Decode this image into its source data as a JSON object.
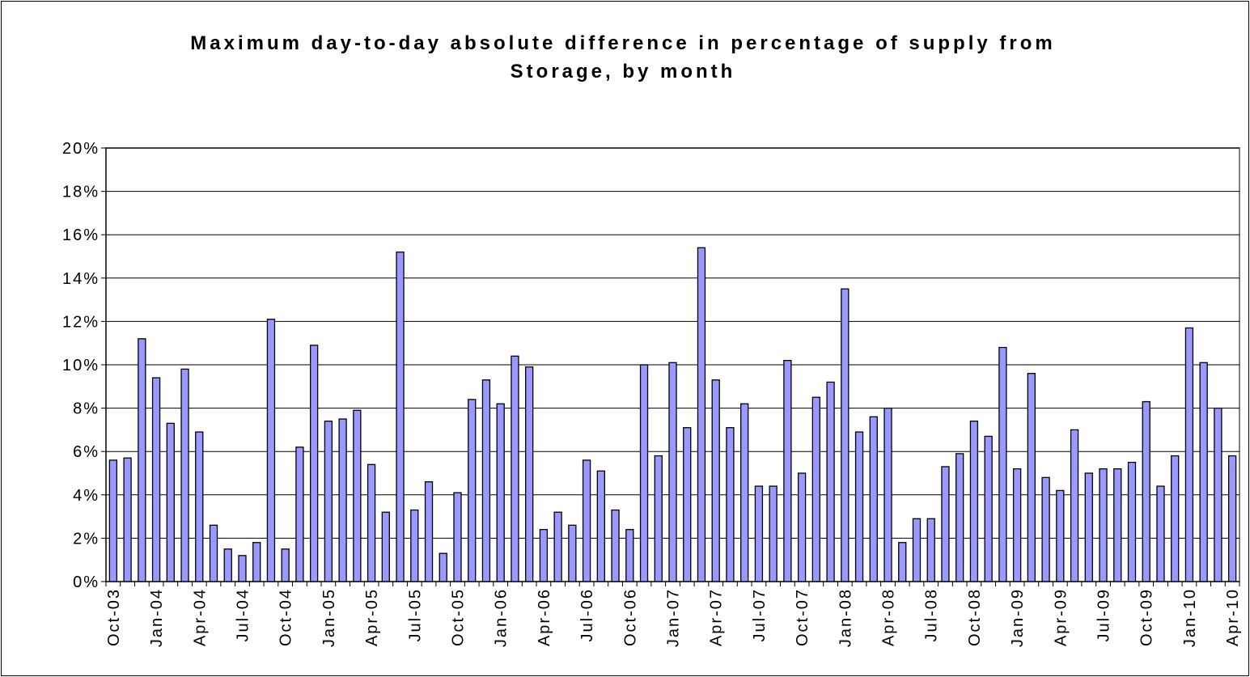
{
  "chart_data": {
    "type": "bar",
    "title": "Maximum day-to-day absolute difference in percentage of supply from Storage, by month",
    "categories": [
      "Oct-03",
      null,
      null,
      "Jan-04",
      null,
      null,
      "Apr-04",
      null,
      null,
      "Jul-04",
      null,
      null,
      "Oct-04",
      null,
      null,
      "Jan-05",
      null,
      null,
      "Apr-05",
      null,
      null,
      "Jul-05",
      null,
      null,
      "Oct-05",
      null,
      null,
      "Jan-06",
      null,
      null,
      "Apr-06",
      null,
      null,
      "Jul-06",
      null,
      null,
      "Oct-06",
      null,
      null,
      "Jan-07",
      null,
      null,
      "Apr-07",
      null,
      null,
      "Jul-07",
      null,
      null,
      "Oct-07",
      null,
      null,
      "Jan-08",
      null,
      null,
      "Apr-08",
      null,
      null,
      "Jul-08",
      null,
      null,
      "Oct-08",
      null,
      null,
      "Jan-09",
      null,
      null,
      "Apr-09",
      null,
      null,
      "Jul-09",
      null,
      null,
      "Oct-09",
      null,
      null,
      "Jan-10",
      null,
      null,
      "Apr-10"
    ],
    "values": [
      5.6,
      5.7,
      11.2,
      9.4,
      7.3,
      9.8,
      6.9,
      2.6,
      1.5,
      1.2,
      1.8,
      12.1,
      1.5,
      6.2,
      10.9,
      7.4,
      7.5,
      7.9,
      5.4,
      3.2,
      15.2,
      3.3,
      4.6,
      1.3,
      4.1,
      8.4,
      9.3,
      8.2,
      10.4,
      9.9,
      2.4,
      3.2,
      2.6,
      5.6,
      5.1,
      3.3,
      2.4,
      10.0,
      5.8,
      10.1,
      7.1,
      15.4,
      9.3,
      7.1,
      8.2,
      4.4,
      4.4,
      10.2,
      5.0,
      8.5,
      9.2,
      13.5,
      6.9,
      7.6,
      8.0,
      1.8,
      2.9,
      2.9,
      5.3,
      5.9,
      7.4,
      6.7,
      10.8,
      5.2,
      9.6,
      4.8,
      4.2,
      7.0,
      5.0,
      5.2,
      5.2,
      5.5,
      8.3,
      4.4,
      5.8,
      11.7,
      10.1,
      8.0,
      5.8
    ],
    "color": "#9999ff",
    "ylim": [
      0,
      20
    ],
    "yticks": [
      {
        "value": 0,
        "label": "0%"
      },
      {
        "value": 2,
        "label": "2%"
      },
      {
        "value": 4,
        "label": "4%"
      },
      {
        "value": 6,
        "label": "6%"
      },
      {
        "value": 8,
        "label": "8%"
      },
      {
        "value": 10,
        "label": "10%"
      },
      {
        "value": 12,
        "label": "12%"
      },
      {
        "value": 14,
        "label": "14%"
      },
      {
        "value": 16,
        "label": "16%"
      },
      {
        "value": 18,
        "label": "18%"
      },
      {
        "value": 20,
        "label": "20%"
      }
    ],
    "grid": true
  }
}
